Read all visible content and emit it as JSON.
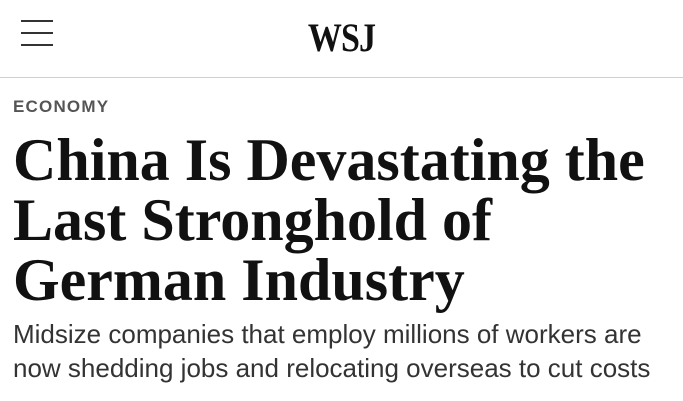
{
  "header": {
    "logo": "WSJ"
  },
  "article": {
    "section": "ECONOMY",
    "headline_lines": [
      "China Is Devastating the",
      "Last Stronghold of",
      "German Industry"
    ],
    "dek_lines": [
      "Midsize companies that employ millions of workers are",
      "now shedding jobs and relocating overseas to cut costs"
    ]
  }
}
